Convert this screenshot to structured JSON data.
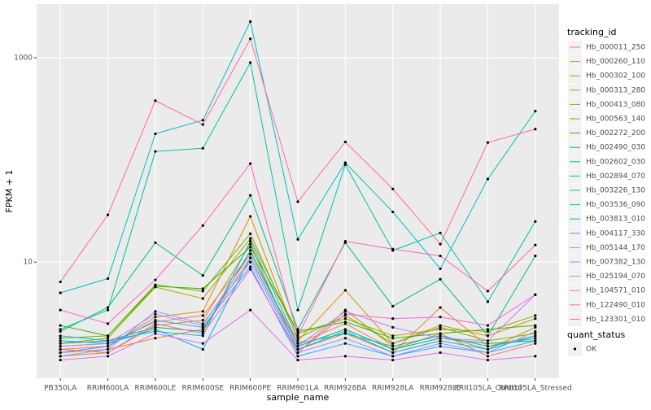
{
  "chart_data": {
    "type": "line",
    "log_y": true,
    "grid": true,
    "x_label": "sample_name",
    "y_label": "FPKM + 1",
    "legend_title": "tracking_id",
    "legend_position": "right",
    "point_legend": {
      "title": "quant_status",
      "labels": [
        "OK"
      ],
      "color": "#000000"
    },
    "categories": [
      "PB350LA",
      "RRIM600LA",
      "RRIM600LE",
      "RRIM600SE",
      "RRIM600PE",
      "RRIM901LA",
      "RRIM928BA",
      "RRIM928LA",
      "RRIM928LE",
      "RRII105LA_Control",
      "RRII105LA_Stressed"
    ],
    "ylim": [
      0.73,
      3350
    ],
    "yticks": [
      10,
      1000
    ],
    "series": [
      {
        "name": "Hb_000011_250",
        "color": "#F8766D",
        "values": [
          1.5,
          1.6,
          2.6,
          3.0,
          12,
          1.6,
          2.5,
          1.4,
          2.0,
          1.2,
          1.6
        ]
      },
      {
        "name": "Hb_000260_110",
        "color": "#EA8331",
        "values": [
          1.3,
          1.4,
          1.8,
          2.2,
          11,
          1.4,
          2.0,
          1.3,
          3.6,
          1.5,
          1.9
        ]
      },
      {
        "name": "Hb_000302_100",
        "color": "#D89000",
        "values": [
          1.4,
          1.5,
          2.9,
          3.3,
          28,
          1.7,
          5.3,
          1.6,
          2.4,
          1.9,
          2.8
        ]
      },
      {
        "name": "Hb_000313_280",
        "color": "#C09B00",
        "values": [
          1.2,
          1.3,
          2.4,
          2.7,
          15,
          1.3,
          3.4,
          1.5,
          1.9,
          1.4,
          2.3
        ]
      },
      {
        "name": "Hb_000413_080",
        "color": "#A3A500",
        "values": [
          1.6,
          1.8,
          5.7,
          4.4,
          17,
          2.0,
          2.8,
          1.9,
          2.2,
          2.1,
          3.0
        ]
      },
      {
        "name": "Hb_000563_140",
        "color": "#7CAE00",
        "values": [
          1.8,
          1.9,
          6.0,
          5.2,
          19,
          1.8,
          3.0,
          1.6,
          2.3,
          1.7,
          2.0
        ]
      },
      {
        "name": "Hb_002272_200",
        "color": "#39B600",
        "values": [
          2.4,
          1.9,
          5.8,
          5.5,
          14,
          2.1,
          2.6,
          1.8,
          2.0,
          2.2,
          2.4
        ]
      },
      {
        "name": "Hb_002490_030",
        "color": "#00BB4E",
        "values": [
          1.6,
          1.7,
          2.3,
          2.1,
          13,
          1.5,
          2.2,
          1.4,
          1.8,
          1.6,
          1.7
        ]
      },
      {
        "name": "Hb_002602_030",
        "color": "#00BF7D",
        "values": [
          2.1,
          3.6,
          15.5,
          7.4,
          45,
          2.2,
          15.5,
          3.7,
          6.8,
          1.9,
          11.5
        ]
      },
      {
        "name": "Hb_002894_070",
        "color": "#00C1A3",
        "values": [
          2.2,
          3.4,
          121,
          130,
          895,
          3.4,
          90,
          13,
          19.3,
          4.1,
          25
        ]
      },
      {
        "name": "Hb_003226_130",
        "color": "#00BFC4",
        "values": [
          5.0,
          6.9,
          180,
          245,
          2260,
          16.7,
          94,
          31,
          8.6,
          65,
          300
        ]
      },
      {
        "name": "Hb_003536_090",
        "color": "#00BAE0",
        "values": [
          1.9,
          1.7,
          2.1,
          1.9,
          16,
          1.6,
          2.0,
          1.5,
          1.9,
          1.5,
          1.8
        ]
      },
      {
        "name": "Hb_003813_010",
        "color": "#00B0F6",
        "values": [
          1.7,
          1.6,
          2.2,
          1.4,
          11,
          1.4,
          2.1,
          1.3,
          1.7,
          1.4,
          1.9
        ]
      },
      {
        "name": "Hb_004117_330",
        "color": "#35A2FF",
        "values": [
          1.3,
          1.5,
          2.7,
          2.3,
          9,
          1.2,
          1.6,
          1.2,
          1.5,
          1.3,
          1.7
        ]
      },
      {
        "name": "Hb_005144_170",
        "color": "#9590FF",
        "values": [
          1.2,
          1.4,
          3.3,
          2.5,
          10,
          1.3,
          1.8,
          1.2,
          1.6,
          1.3,
          2.1
        ]
      },
      {
        "name": "Hb_007382_130",
        "color": "#C77CFF",
        "values": [
          1.5,
          1.6,
          3.1,
          2.4,
          12,
          1.5,
          3.3,
          2.3,
          1.8,
          1.7,
          4.8
        ]
      },
      {
        "name": "Hb_025194_070",
        "color": "#E76BF3",
        "values": [
          1.1,
          1.2,
          2.0,
          1.6,
          3.4,
          1.1,
          1.2,
          1.1,
          1.3,
          1.1,
          1.2
        ]
      },
      {
        "name": "Hb_104571_010",
        "color": "#FA62DB",
        "values": [
          1.4,
          1.3,
          2.5,
          2.0,
          8.5,
          1.3,
          3.1,
          2.8,
          2.9,
          2.4,
          4.8
        ]
      },
      {
        "name": "Hb_122490_010",
        "color": "#FF62BC",
        "values": [
          3.4,
          2.5,
          6.7,
          22.8,
          92,
          1.9,
          16,
          13.4,
          11.5,
          5.2,
          14.7
        ]
      },
      {
        "name": "Hb_123301_010",
        "color": "#FF6C91",
        "values": [
          6.4,
          29,
          380,
          222,
          1530,
          39,
          150,
          52,
          15,
          148,
          200
        ]
      }
    ]
  }
}
